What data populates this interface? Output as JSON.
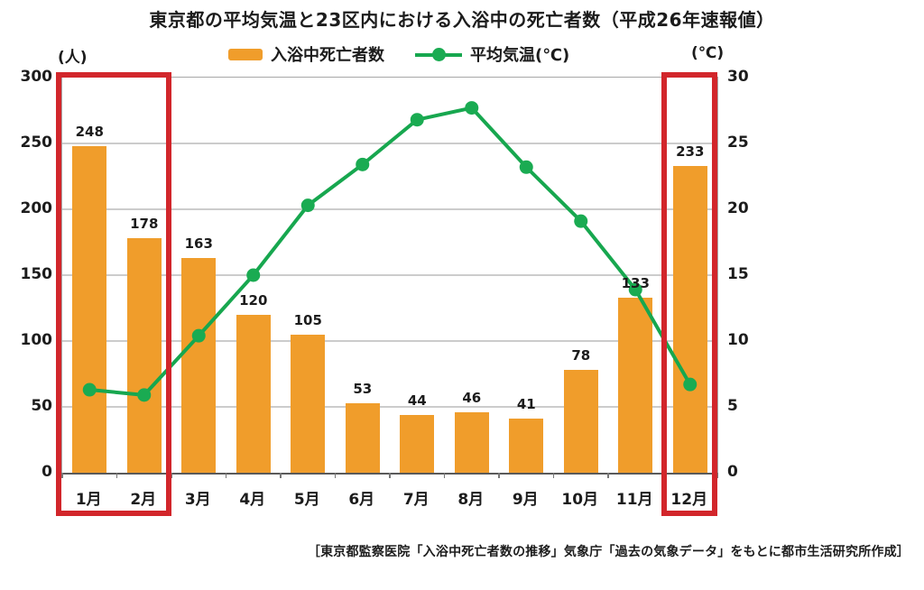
{
  "title": "東京都の平均気温と23区内における入浴中の死亡者数（平成26年速報値）",
  "footer": "［東京都監察医院「入浴中死亡者数の推移」気象庁「過去の気象データ」をもとに都市生活研究所作成］",
  "legend": {
    "bar_label": "入浴中死亡者数",
    "line_label": "平均気温(℃)"
  },
  "colors": {
    "bar": "#F09D2B",
    "line": "#17A74F",
    "dot": "#1AAB52",
    "highlight": "#D2262B",
    "grid": "#CCCCCC",
    "text": "#1C1C1C"
  },
  "chart_data": {
    "type": "bar",
    "subtype": "combo-bar-line-dual-axis",
    "categories": [
      "1月",
      "2月",
      "3月",
      "4月",
      "5月",
      "6月",
      "7月",
      "8月",
      "9月",
      "10月",
      "11月",
      "12月"
    ],
    "series": [
      {
        "name": "入浴中死亡者数",
        "type": "bar",
        "axis": "left",
        "values": [
          248,
          178,
          163,
          120,
          105,
          53,
          44,
          46,
          41,
          78,
          133,
          233
        ],
        "color": "#F09D2B",
        "data_labels": true
      },
      {
        "name": "平均気温(℃)",
        "type": "line",
        "axis": "right",
        "values": [
          6.3,
          5.9,
          10.4,
          15.0,
          20.3,
          23.4,
          26.8,
          27.7,
          23.2,
          19.1,
          13.9,
          6.7
        ],
        "color": "#17A74F",
        "marker": "circle"
      }
    ],
    "left_axis": {
      "label": "(人)",
      "min": 0,
      "max": 300,
      "step": 50,
      "ticks": [
        0,
        50,
        100,
        150,
        200,
        250,
        300
      ]
    },
    "right_axis": {
      "label": "(℃)",
      "min": 0,
      "max": 30,
      "step": 5,
      "ticks": [
        0,
        5,
        10,
        15,
        20,
        25,
        30
      ]
    },
    "grid": "horizontal",
    "legend_position": "top-center",
    "highlighted_categories": [
      "1月",
      "2月",
      "12月"
    ],
    "highlight_style": "red-rectangle"
  }
}
